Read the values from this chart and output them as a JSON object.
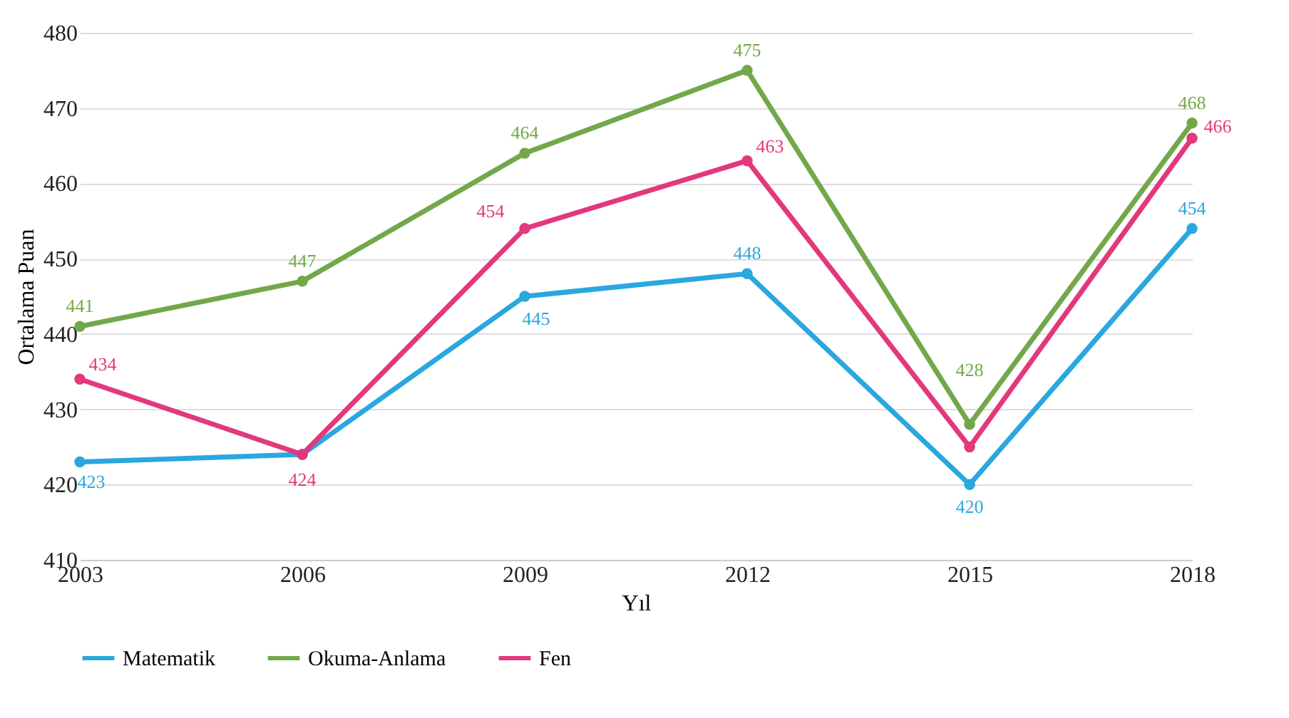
{
  "chart_data": {
    "type": "line",
    "xlabel": "Yıl",
    "ylabel": "Ortalama Puan",
    "x": [
      2003,
      2006,
      2009,
      2012,
      2015,
      2018
    ],
    "xlim": [
      2003,
      2018
    ],
    "xticks": [
      2003,
      2006,
      2009,
      2012,
      2015,
      2018
    ],
    "ylim": [
      410,
      480
    ],
    "yticks": [
      410,
      420,
      430,
      440,
      450,
      460,
      470,
      480
    ],
    "grid": "y",
    "legend": "bottom",
    "marker": "circle",
    "line_style": "solid",
    "series": [
      {
        "name": "Matematik",
        "color": "#2aa7df",
        "values": [
          423,
          424,
          445,
          448,
          420,
          454
        ],
        "value_labels": [
          "423",
          null,
          "445",
          "448",
          "420",
          "454"
        ]
      },
      {
        "name": "Okuma-Anlama",
        "color": "#72a84a",
        "values": [
          441,
          447,
          464,
          475,
          428,
          468
        ],
        "value_labels": [
          "441",
          "447",
          "464",
          "475",
          "428",
          "468"
        ]
      },
      {
        "name": "Fen",
        "color": "#e3387c",
        "values": [
          434,
          424,
          454,
          463,
          425,
          466
        ],
        "value_labels": [
          "434",
          "424",
          "454",
          "463",
          null,
          "466"
        ]
      }
    ]
  }
}
